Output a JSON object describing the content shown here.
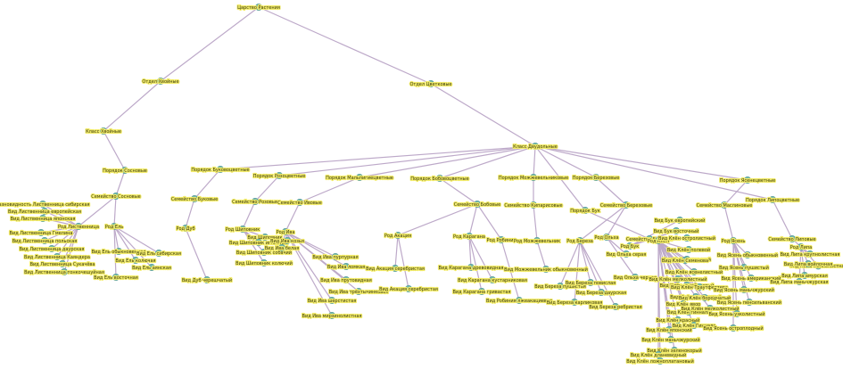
{
  "graph": {
    "root": {
      "label": "Царство Растения",
      "children": [
        {
          "label": "Отдел Хвойные",
          "children": [
            {
              "label": "Класс Хвойные",
              "children": [
                {
                  "label": "Порядок Сосновые",
                  "children": [
                    {
                      "label": "Семейство Сосновые",
                      "children": [
                        {
                          "label": "Род Ель",
                          "children": [
                            {
                              "label": "Вид Ель обыкновенная"
                            },
                            {
                              "label": "Вид Ель сибирская"
                            },
                            {
                              "label": "Вид Ель колючая"
                            },
                            {
                              "label": "Вид Ель аянская"
                            },
                            {
                              "label": "Вид Ель восточная"
                            }
                          ]
                        },
                        {
                          "label": "Род Лиственница",
                          "children": [
                            {
                              "label": "Разновидность Лиственница сибирская"
                            },
                            {
                              "label": "Вид Лиственница европейская"
                            },
                            {
                              "label": "Вид Лиственница японская"
                            },
                            {
                              "label": "Вид Лиственница Гмелина"
                            },
                            {
                              "label": "Вид Лиственница польская"
                            },
                            {
                              "label": "Вид Лиственница даурская"
                            },
                            {
                              "label": "Вид Лиственница Каяндера"
                            },
                            {
                              "label": "Вид Лиственница Сукачёва"
                            },
                            {
                              "label": "Вид Лиственница тонкочешуйная"
                            }
                          ]
                        }
                      ]
                    }
                  ]
                }
              ]
            }
          ]
        },
        {
          "label": "Отдел Цветковые",
          "children": [
            {
              "label": "Класс Двудольные",
              "children": [
                {
                  "label": "Порядок Буковоцветные",
                  "children": [
                    {
                      "label": "Семейство Буковые",
                      "children": [
                        {
                          "label": "Род Дуб",
                          "children": [
                            {
                              "label": "Вид Дуб черешчатый"
                            }
                          ]
                        }
                      ]
                    }
                  ]
                },
                {
                  "label": "Порядок Розоцветные",
                  "children": [
                    {
                      "label": "Семейство Розовые",
                      "children": [
                        {
                          "label": "Род Шиповник",
                          "children": [
                            {
                              "label": "Вид Шиповник"
                            },
                            {
                              "label": "Вид Шиповник иглистый"
                            },
                            {
                              "label": "Вид Шиповник собачий"
                            },
                            {
                              "label": "Вид Шиповник колючий"
                            }
                          ]
                        }
                      ]
                    }
                  ]
                },
                {
                  "label": "Порядок Мальпигиецветные",
                  "children": [
                    {
                      "label": "Семейство Ивовые",
                      "children": [
                        {
                          "label": "Род Ива",
                          "children": [
                            {
                              "label": "Вид Ива козья"
                            },
                            {
                              "label": "Вид Ива белая"
                            },
                            {
                              "label": "Вид Ива пурпурная"
                            },
                            {
                              "label": "Вид Ива ломкая"
                            },
                            {
                              "label": "Вид Ива прутовидная"
                            },
                            {
                              "label": "Вид Ива трёхтычинковая"
                            },
                            {
                              "label": "Вид Ива шерстистая"
                            },
                            {
                              "label": "Вид Ива мирзинолистная"
                            }
                          ]
                        }
                      ]
                    }
                  ]
                },
                {
                  "label": "Порядок Бобовоцветные",
                  "children": [
                    {
                      "label": "Семейство Бобовые",
                      "children": [
                        {
                          "label": "Род Акация",
                          "children": [
                            {
                              "label": "Вид Акация серебристая"
                            },
                            {
                              "label": "Вид Акация серебристая"
                            }
                          ]
                        },
                        {
                          "label": "Род Карагана",
                          "children": [
                            {
                              "label": "Вид Карагана древовидная"
                            },
                            {
                              "label": "Вид Карагана кустарниковая"
                            },
                            {
                              "label": "Вид Карагана гривастая"
                            }
                          ]
                        },
                        {
                          "label": "Род Робиния",
                          "children": [
                            {
                              "label": "Вид Робиния лжеакациевая"
                            }
                          ]
                        }
                      ]
                    }
                  ]
                },
                {
                  "label": "Порядок Можжевельниковые",
                  "children": [
                    {
                      "label": "Семейство Кипарисовые",
                      "children": [
                        {
                          "label": "Род Можжевельник",
                          "children": [
                            {
                              "label": "Вид Можжевельник обыкновенный"
                            }
                          ]
                        }
                      ]
                    }
                  ]
                },
                {
                  "label": "Порядок Березовые",
                  "children": [
                    {
                      "label": "Семейство Березовые",
                      "children": [
                        {
                          "label": "Род Береза",
                          "children": [
                            {
                              "label": "Вид Береза пушистая"
                            },
                            {
                              "label": "Вид Береза повислая"
                            },
                            {
                              "label": "Вид Береза даурская"
                            },
                            {
                              "label": "Вид Береза карликовая"
                            },
                            {
                              "label": "Вид Береза ребристая"
                            }
                          ]
                        },
                        {
                          "label": "Род Ольха",
                          "children": [
                            {
                              "label": "Вид Ольха серая"
                            },
                            {
                              "label": "Вид Ольха черная"
                            }
                          ]
                        }
                      ]
                    }
                  ]
                },
                {
                  "label": "Порядок Бук",
                  "children": [
                    {
                      "label": "Семейство Буковые",
                      "children": [
                        {
                          "label": "Род Бук",
                          "children": [
                            {
                              "label": "Вид Бук европейский"
                            },
                            {
                              "label": "Вид Бук восточный"
                            }
                          ]
                        },
                        {
                          "label": "Род Клён",
                          "children": [
                            {
                              "label": "Вид Клён остролистный"
                            },
                            {
                              "label": "Вид Клён полевой"
                            },
                            {
                              "label": "Вид Клён татарский"
                            },
                            {
                              "label": "Вид Клён ясенелистный"
                            },
                            {
                              "label": "Вид Клён серебристый"
                            },
                            {
                              "label": "Вид Клён сахаристый"
                            },
                            {
                              "label": "Вид Клён явор"
                            },
                            {
                              "label": "Вид Клён гиннала"
                            },
                            {
                              "label": "Вид Клён красный"
                            },
                            {
                              "label": "Вид Клён японский"
                            },
                            {
                              "label": "Вид Клён маньчжурский"
                            },
                            {
                              "label": "Вид Клён зеленокорый"
                            },
                            {
                              "label": "Вид Клён ложноплатановый"
                            },
                            {
                              "label": "Вид Клён Семенова"
                            },
                            {
                              "label": "Вид Клён Траутфеттера"
                            },
                            {
                              "label": "Вид Клён бородчатый"
                            },
                            {
                              "label": "Вид Клён мелколистный"
                            },
                            {
                              "label": "Вид Клён мелколистный"
                            },
                            {
                              "label": "Вид Клён Гиннала"
                            },
                            {
                              "label": "Вид Клён дланевидный"
                            }
                          ]
                        }
                      ]
                    }
                  ]
                },
                {
                  "label": "Порядок Ясенецветные",
                  "children": [
                    {
                      "label": "Семейство Маслиновые",
                      "children": [
                        {
                          "label": "Род Ясень",
                          "children": [
                            {
                              "label": "Вид Ясень обыкновенный"
                            },
                            {
                              "label": "Вид Ясень пушистый"
                            },
                            {
                              "label": "Вид Ясень американский"
                            },
                            {
                              "label": "Вид Ясень маньчжурский"
                            },
                            {
                              "label": "Вид Ясень пенсильванский"
                            },
                            {
                              "label": "Вид Ясень узколистный"
                            },
                            {
                              "label": "Вид Ясень остроплодный"
                            }
                          ]
                        }
                      ]
                    }
                  ]
                },
                {
                  "label": "Порядок Липоцветные",
                  "children": [
                    {
                      "label": "Семейство Липовые",
                      "children": [
                        {
                          "label": "Род Липа",
                          "children": [
                            {
                              "label": "Вид Липа мелколистная"
                            },
                            {
                              "label": "Вид Липа крупнолистная"
                            },
                            {
                              "label": "Вид Липа войлочная"
                            },
                            {
                              "label": "Вид Липа амурская"
                            },
                            {
                              "label": "Вид Липа маньчжурская"
                            }
                          ]
                        }
                      ]
                    }
                  ]
                }
              ]
            }
          ]
        }
      ]
    }
  }
}
